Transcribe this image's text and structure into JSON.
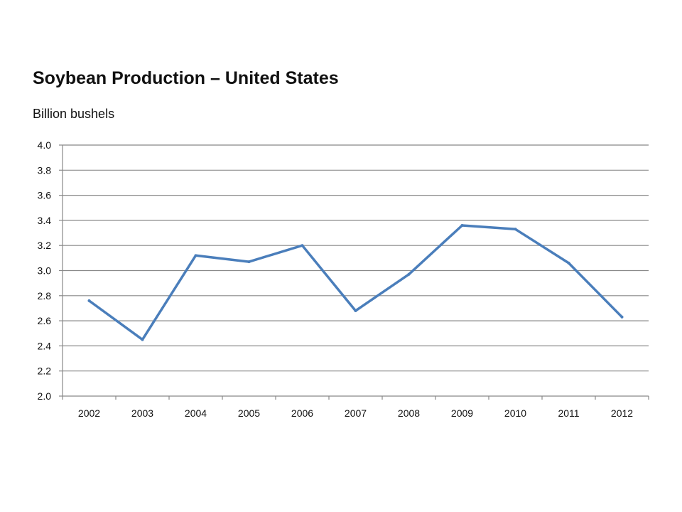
{
  "chart_data": {
    "type": "line",
    "title": "Soybean Production – United States",
    "subtitle": "Billion bushels",
    "xlabel": "",
    "ylabel": "",
    "categories": [
      "2002",
      "2003",
      "2004",
      "2005",
      "2006",
      "2007",
      "2008",
      "2009",
      "2010",
      "2011",
      "2012"
    ],
    "series": [
      {
        "values": [
          2.76,
          2.45,
          3.12,
          3.07,
          3.2,
          2.68,
          2.97,
          3.36,
          3.33,
          3.06,
          2.63
        ],
        "color": "#4a7ebb"
      }
    ],
    "ylim": [
      2.0,
      4.0
    ],
    "yticks": [
      "2.0",
      "2.2",
      "2.4",
      "2.6",
      "2.8",
      "3.0",
      "3.2",
      "3.4",
      "3.6",
      "3.8",
      "4.0"
    ],
    "grid": true,
    "legend": "none",
    "gridline_color": "#888888"
  }
}
